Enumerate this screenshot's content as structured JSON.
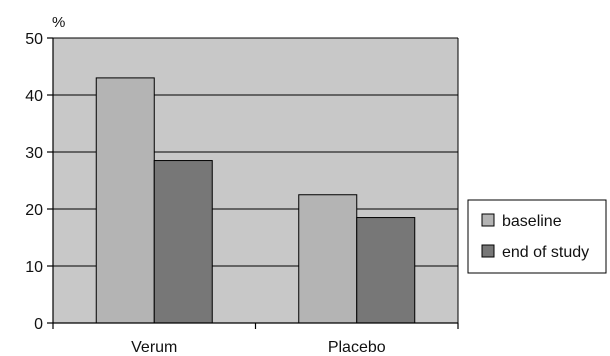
{
  "chart_data": {
    "type": "bar",
    "y_unit": "%",
    "categories": [
      "Verum",
      "Placebo"
    ],
    "series": [
      {
        "name": "baseline",
        "values": [
          43,
          22.5
        ],
        "color": "#b4b4b4"
      },
      {
        "name": "end of study",
        "values": [
          28.5,
          18.5
        ],
        "color": "#777777"
      }
    ],
    "ylim": [
      0,
      50
    ],
    "yticks": [
      0,
      10,
      20,
      30,
      40,
      50
    ],
    "grid": true,
    "plot_background": "#c8c8c8",
    "legend_position": "right"
  }
}
